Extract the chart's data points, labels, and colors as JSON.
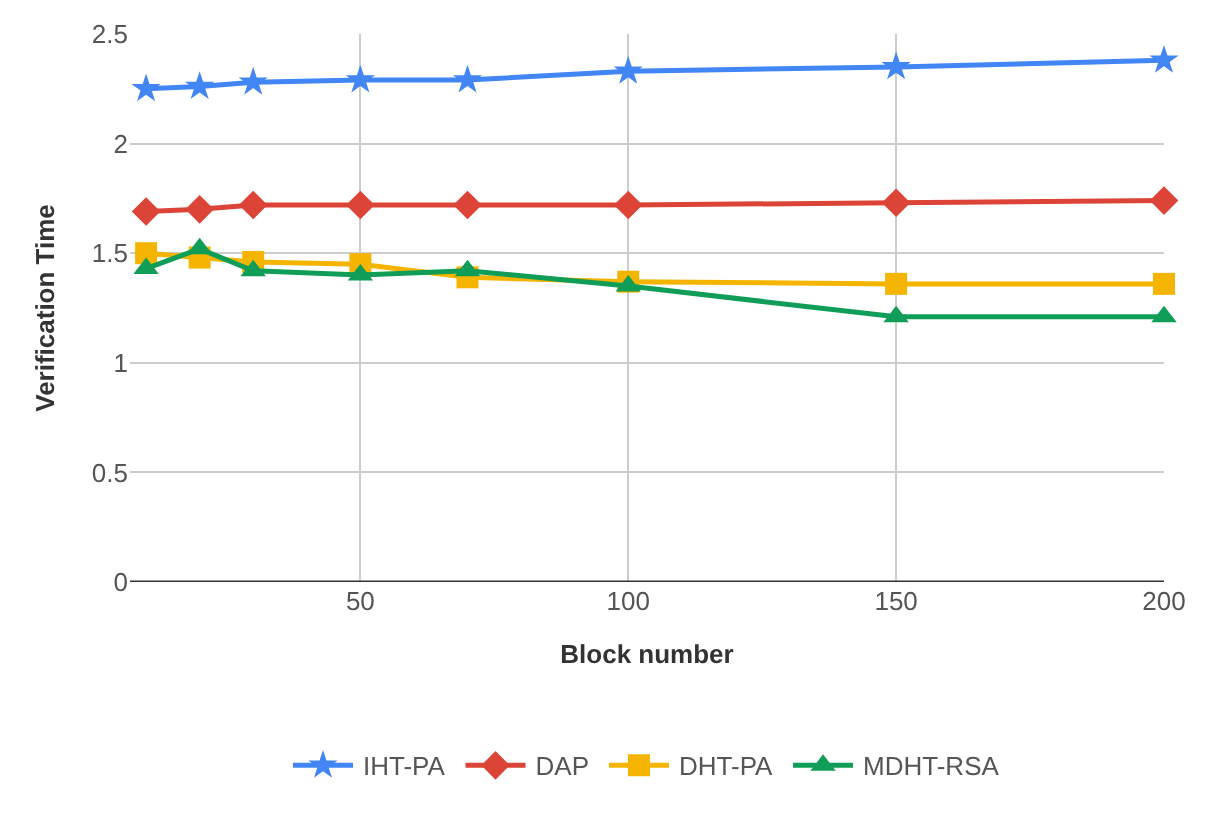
{
  "chart_data": {
    "type": "line",
    "xlabel": "Block number",
    "ylabel": "Verification Time",
    "x": [
      10,
      20,
      30,
      50,
      70,
      100,
      150,
      200
    ],
    "xlim": [
      7,
      200
    ],
    "xticks": [
      50,
      100,
      150,
      200
    ],
    "ylim": [
      0,
      2.5
    ],
    "yticks": [
      0,
      0.5,
      1,
      1.5,
      2,
      2.5
    ],
    "grid": true,
    "legend": "bottom",
    "line_style": "solid",
    "series": [
      {
        "name": "IHT-PA",
        "color": "#4285f4",
        "marker": "star",
        "values": [
          2.25,
          2.26,
          2.28,
          2.29,
          2.29,
          2.33,
          2.35,
          2.38
        ]
      },
      {
        "name": "DAP",
        "color": "#db4437",
        "marker": "diamond",
        "values": [
          1.69,
          1.7,
          1.72,
          1.72,
          1.72,
          1.72,
          1.73,
          1.74
        ]
      },
      {
        "name": "DHT-PA",
        "color": "#f4b400",
        "marker": "square",
        "values": [
          1.5,
          1.48,
          1.46,
          1.45,
          1.39,
          1.37,
          1.36,
          1.36
        ]
      },
      {
        "name": "MDHT-RSA",
        "color": "#0f9d58",
        "marker": "triangle",
        "values": [
          1.43,
          1.52,
          1.42,
          1.4,
          1.42,
          1.35,
          1.21,
          1.21
        ]
      }
    ]
  }
}
